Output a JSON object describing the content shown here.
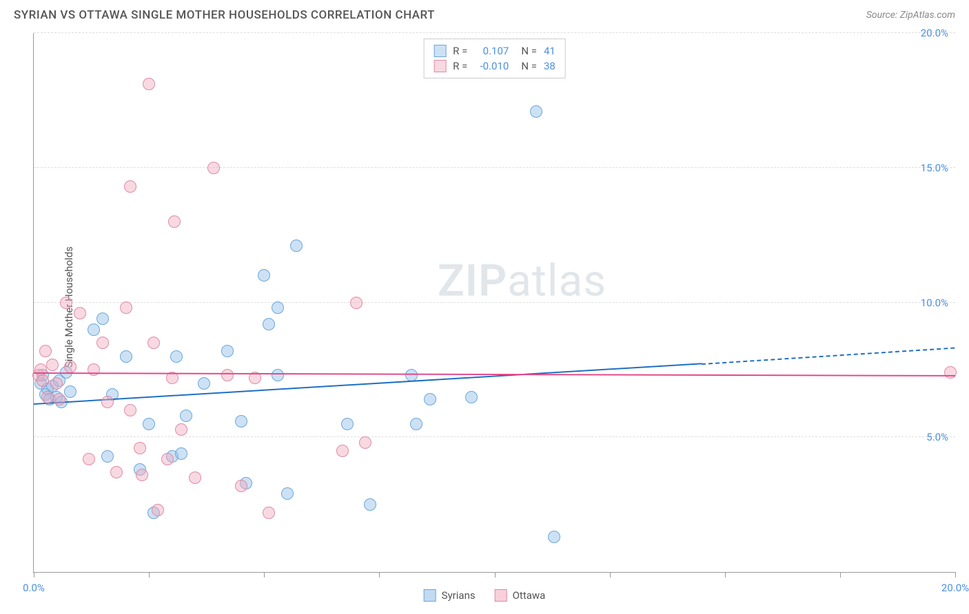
{
  "title": "SYRIAN VS OTTAWA SINGLE MOTHER HOUSEHOLDS CORRELATION CHART",
  "source": "Source: ZipAtlas.com",
  "ylabel": "Single Mother Households",
  "watermark_zip": "ZIP",
  "watermark_atlas": "atlas",
  "chart": {
    "type": "scatter",
    "xlim": [
      0,
      20
    ],
    "ylim": [
      0,
      20
    ],
    "ytick_values": [
      5,
      10,
      15,
      20
    ],
    "ytick_labels": [
      "5.0%",
      "10.0%",
      "15.0%",
      "20.0%"
    ],
    "xtick_values": [
      0,
      2.5,
      5,
      7.5,
      10,
      12.5,
      15,
      17.5,
      20
    ],
    "xtick_labels_shown": {
      "0": "0.0%",
      "20": "20.0%"
    },
    "background_color": "#ffffff",
    "grid_color": "#dddddd",
    "axis_color": "#999999",
    "tick_label_color": "#4a90e2",
    "point_radius": 9,
    "point_border_width": 1.5,
    "series": [
      {
        "name": "Syrians",
        "fill_color": "rgba(144,188,232,0.45)",
        "border_color": "#6aa7d8",
        "trend_color": "#1f6fc2",
        "R": "0.107",
        "N": "41",
        "trend": {
          "x1": 0,
          "y1": 6.2,
          "x2": 14.5,
          "y2": 7.7,
          "x2_dash": 20,
          "y2_dash": 8.3
        },
        "points": [
          [
            0.15,
            7.0
          ],
          [
            0.2,
            7.3
          ],
          [
            0.25,
            6.6
          ],
          [
            0.3,
            6.8
          ],
          [
            0.35,
            6.4
          ],
          [
            0.4,
            6.9
          ],
          [
            0.5,
            6.5
          ],
          [
            0.55,
            7.1
          ],
          [
            0.6,
            6.3
          ],
          [
            0.7,
            7.4
          ],
          [
            0.8,
            6.7
          ],
          [
            1.3,
            9.0
          ],
          [
            1.5,
            9.4
          ],
          [
            1.6,
            4.3
          ],
          [
            1.7,
            6.6
          ],
          [
            2.0,
            8.0
          ],
          [
            2.3,
            3.8
          ],
          [
            2.5,
            5.5
          ],
          [
            2.6,
            2.2
          ],
          [
            3.0,
            4.3
          ],
          [
            3.1,
            8.0
          ],
          [
            3.2,
            4.4
          ],
          [
            3.3,
            5.8
          ],
          [
            3.7,
            7.0
          ],
          [
            4.2,
            8.2
          ],
          [
            4.5,
            5.6
          ],
          [
            4.6,
            3.3
          ],
          [
            5.0,
            11.0
          ],
          [
            5.1,
            9.2
          ],
          [
            5.3,
            9.8
          ],
          [
            5.3,
            7.3
          ],
          [
            5.5,
            2.9
          ],
          [
            5.7,
            12.1
          ],
          [
            6.8,
            5.5
          ],
          [
            7.3,
            2.5
          ],
          [
            8.2,
            7.3
          ],
          [
            8.3,
            5.5
          ],
          [
            8.6,
            6.4
          ],
          [
            9.5,
            6.5
          ],
          [
            10.9,
            17.1
          ],
          [
            11.3,
            1.3
          ]
        ]
      },
      {
        "name": "Ottawa",
        "fill_color": "rgba(240,170,190,0.45)",
        "border_color": "#e08aa4",
        "trend_color": "#e24a8a",
        "R": "-0.010",
        "N": "38",
        "trend": {
          "x1": 0,
          "y1": 7.35,
          "x2": 20,
          "y2": 7.25
        },
        "points": [
          [
            0.1,
            7.3
          ],
          [
            0.15,
            7.5
          ],
          [
            0.2,
            7.1
          ],
          [
            0.25,
            8.2
          ],
          [
            0.3,
            6.5
          ],
          [
            0.4,
            7.7
          ],
          [
            0.5,
            7.0
          ],
          [
            0.55,
            6.4
          ],
          [
            0.7,
            10.0
          ],
          [
            0.8,
            7.6
          ],
          [
            1.0,
            9.6
          ],
          [
            1.2,
            4.2
          ],
          [
            1.3,
            7.5
          ],
          [
            1.5,
            8.5
          ],
          [
            1.6,
            6.3
          ],
          [
            1.8,
            3.7
          ],
          [
            2.0,
            9.8
          ],
          [
            2.1,
            6.0
          ],
          [
            2.1,
            14.3
          ],
          [
            2.3,
            4.6
          ],
          [
            2.35,
            3.6
          ],
          [
            2.5,
            18.1
          ],
          [
            2.6,
            8.5
          ],
          [
            2.7,
            2.3
          ],
          [
            2.9,
            4.2
          ],
          [
            3.0,
            7.2
          ],
          [
            3.05,
            13.0
          ],
          [
            3.2,
            5.3
          ],
          [
            3.5,
            3.5
          ],
          [
            3.9,
            15.0
          ],
          [
            4.2,
            7.3
          ],
          [
            4.5,
            3.2
          ],
          [
            4.8,
            7.2
          ],
          [
            5.1,
            2.2
          ],
          [
            6.7,
            4.5
          ],
          [
            7.0,
            10.0
          ],
          [
            7.2,
            4.8
          ],
          [
            19.9,
            7.4
          ]
        ]
      }
    ]
  },
  "bottom_legend": [
    {
      "label": "Syrians",
      "fill": "rgba(144,188,232,0.55)",
      "border": "#6aa7d8"
    },
    {
      "label": "Ottawa",
      "fill": "rgba(240,170,190,0.55)",
      "border": "#e08aa4"
    }
  ]
}
